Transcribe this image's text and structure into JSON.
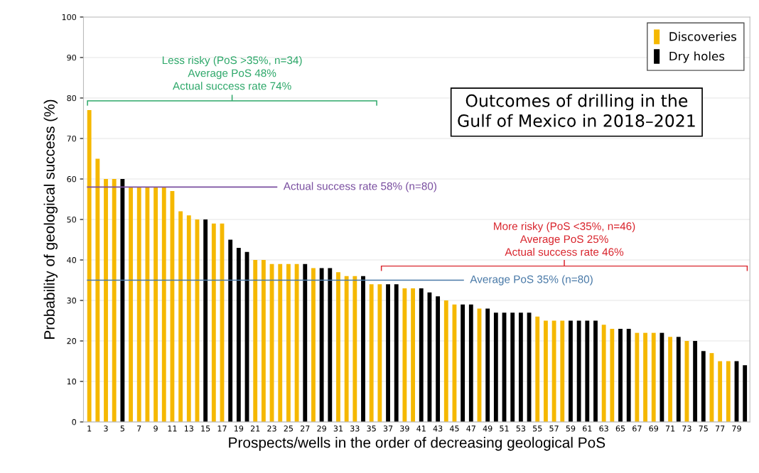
{
  "chart_data": {
    "type": "bar",
    "title": "Outcomes of drilling in the\nGulf of Mexico in 2018–2021",
    "xlabel": "Prospects/wells in the order of decreasing geological PoS",
    "ylabel": "Probability of geological success (%)",
    "categories": [
      "1",
      null,
      "3",
      null,
      "5",
      null,
      "7",
      null,
      "9",
      null,
      "11",
      null,
      "13",
      null,
      "15",
      null,
      "17",
      null,
      "19",
      null,
      "21",
      null,
      "23",
      null,
      "25",
      null,
      "27",
      null,
      "29",
      null,
      "31",
      null,
      "33",
      null,
      "35",
      null,
      "37",
      null,
      "39",
      null,
      "41",
      null,
      "43",
      null,
      "45",
      null,
      "47",
      null,
      "49",
      null,
      "51",
      null,
      "53",
      null,
      "55",
      null,
      "57",
      null,
      "59",
      null,
      "61",
      null,
      "63",
      null,
      "65",
      null,
      "67",
      null,
      "69",
      null,
      "71",
      null,
      "73",
      null,
      "75",
      null,
      "77",
      null,
      "79",
      null
    ],
    "series": [
      {
        "name": "Discoveries",
        "color": "#f5b800",
        "values": [
          77,
          65,
          60,
          60,
          null,
          58,
          58,
          58,
          58,
          58,
          57,
          52,
          51,
          50,
          null,
          49,
          49,
          null,
          null,
          null,
          40,
          40,
          39,
          39,
          39,
          39,
          null,
          38,
          null,
          null,
          37,
          36,
          36,
          null,
          34,
          34,
          null,
          null,
          33,
          33,
          null,
          null,
          null,
          30,
          29,
          null,
          null,
          28,
          null,
          null,
          null,
          null,
          null,
          null,
          26,
          25,
          25,
          25,
          null,
          null,
          null,
          null,
          24,
          23,
          null,
          null,
          22,
          22,
          22,
          null,
          21,
          null,
          20,
          null,
          null,
          17,
          15,
          15,
          null,
          null
        ]
      },
      {
        "name": "Dry holes",
        "color": "#000000",
        "values": [
          null,
          null,
          null,
          null,
          60,
          null,
          null,
          null,
          null,
          null,
          null,
          null,
          null,
          null,
          50,
          null,
          null,
          45,
          43,
          42,
          null,
          null,
          null,
          null,
          null,
          null,
          39,
          null,
          38,
          38,
          null,
          null,
          null,
          36,
          null,
          null,
          34,
          34,
          null,
          null,
          33,
          32,
          31,
          null,
          null,
          29,
          29,
          null,
          28,
          27,
          27,
          27,
          27,
          27,
          null,
          null,
          null,
          null,
          25,
          25,
          25,
          25,
          null,
          null,
          23,
          23,
          null,
          null,
          null,
          22,
          null,
          21,
          null,
          20,
          17.5,
          null,
          null,
          null,
          15,
          14
        ]
      }
    ],
    "ylim": [
      0,
      100
    ],
    "yticks": [
      0,
      10,
      20,
      30,
      40,
      50,
      60,
      70,
      80,
      90,
      100
    ],
    "grid": "y",
    "legend": "top right",
    "ref_lines": [
      {
        "axis": "y",
        "value": 58,
        "label": "Actual success rate 58% (n=80)",
        "color": "#7a4fa0"
      },
      {
        "axis": "y",
        "value": 35,
        "label": "Average PoS 35% (n=80)",
        "color": "#4a7aa8"
      }
    ],
    "annotations": [
      "Less risky (PoS >35%, n=34)\nAverage PoS 48%\nActual success rate 74%",
      "More risky (PoS <35%, n=46)\nAverage PoS 25%\nActual success rate 46%"
    ]
  }
}
